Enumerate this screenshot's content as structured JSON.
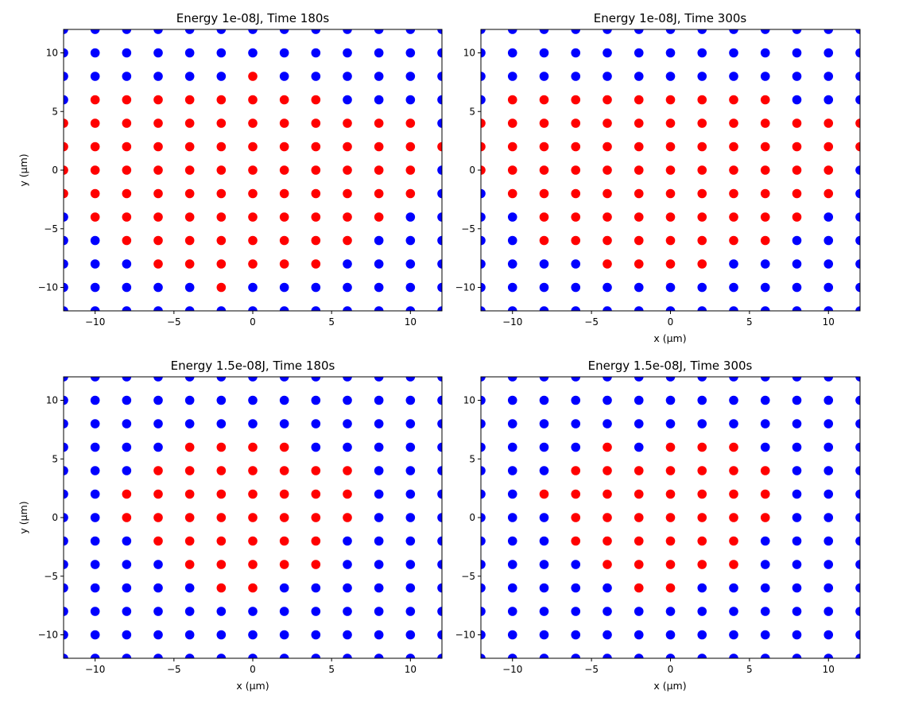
{
  "chart_data": [
    {
      "type": "scatter",
      "title": "Energy 1e-08J, Time 180s",
      "xlabel": "",
      "ylabel": "y (μm)",
      "xlim": [
        -12,
        12
      ],
      "ylim": [
        -12,
        12
      ],
      "xticks": [
        -10,
        -5,
        0,
        5,
        10
      ],
      "yticks": [
        -10,
        -5,
        0,
        5,
        10
      ],
      "grid_x": [
        -12,
        -10,
        -8,
        -6,
        -4,
        -2,
        0,
        2,
        4,
        6,
        8,
        10,
        12
      ],
      "grid_y": [
        -12,
        -10,
        -8,
        -6,
        -4,
        -2,
        0,
        2,
        4,
        6,
        8,
        10,
        12
      ],
      "default_color": "#0000ff",
      "highlight_color": "#ff0000",
      "red_ranges": [
        {
          "y": 8,
          "x": [
            0,
            0
          ]
        },
        {
          "y": 6,
          "x": [
            -10,
            4
          ]
        },
        {
          "y": 4,
          "x": [
            -12,
            10
          ]
        },
        {
          "y": 2,
          "x": [
            -12,
            12
          ]
        },
        {
          "y": 0,
          "x": [
            -12,
            10
          ]
        },
        {
          "y": -2,
          "x": [
            -12,
            10
          ]
        },
        {
          "y": -4,
          "x": [
            -10,
            8
          ]
        },
        {
          "y": -6,
          "x": [
            -8,
            6
          ]
        },
        {
          "y": -8,
          "x": [
            -6,
            4
          ]
        },
        {
          "y": -10,
          "x": [
            -2,
            -2
          ]
        }
      ]
    },
    {
      "type": "scatter",
      "title": "Energy 1e-08J, Time 300s",
      "xlabel": "x (μm)",
      "ylabel": "",
      "xlim": [
        -12,
        12
      ],
      "ylim": [
        -12,
        12
      ],
      "xticks": [
        -10,
        -5,
        0,
        5,
        10
      ],
      "yticks": [
        -10,
        -5,
        0,
        5,
        10
      ],
      "grid_x": [
        -12,
        -10,
        -8,
        -6,
        -4,
        -2,
        0,
        2,
        4,
        6,
        8,
        10,
        12
      ],
      "grid_y": [
        -12,
        -10,
        -8,
        -6,
        -4,
        -2,
        0,
        2,
        4,
        6,
        8,
        10,
        12
      ],
      "default_color": "#0000ff",
      "highlight_color": "#ff0000",
      "red_ranges": [
        {
          "y": 6,
          "x": [
            -10,
            6
          ]
        },
        {
          "y": 4,
          "x": [
            -12,
            12
          ]
        },
        {
          "y": 2,
          "x": [
            -12,
            12
          ]
        },
        {
          "y": 0,
          "x": [
            -12,
            10
          ]
        },
        {
          "y": -2,
          "x": [
            -10,
            10
          ]
        },
        {
          "y": -4,
          "x": [
            -8,
            8
          ]
        },
        {
          "y": -6,
          "x": [
            -8,
            6
          ]
        },
        {
          "y": -8,
          "x": [
            -4,
            2
          ]
        }
      ]
    },
    {
      "type": "scatter",
      "title": "Energy 1.5e-08J, Time 180s",
      "xlabel": "x (μm)",
      "ylabel": "y (μm)",
      "xlim": [
        -12,
        12
      ],
      "ylim": [
        -12,
        12
      ],
      "xticks": [
        -10,
        -5,
        0,
        5,
        10
      ],
      "yticks": [
        -10,
        -5,
        0,
        5,
        10
      ],
      "grid_x": [
        -12,
        -10,
        -8,
        -6,
        -4,
        -2,
        0,
        2,
        4,
        6,
        8,
        10,
        12
      ],
      "grid_y": [
        -12,
        -10,
        -8,
        -6,
        -4,
        -2,
        0,
        2,
        4,
        6,
        8,
        10,
        12
      ],
      "default_color": "#0000ff",
      "highlight_color": "#ff0000",
      "red_ranges": [
        {
          "y": 6,
          "x": [
            -4,
            2
          ]
        },
        {
          "y": 4,
          "x": [
            -6,
            6
          ]
        },
        {
          "y": 2,
          "x": [
            -8,
            6
          ]
        },
        {
          "y": 0,
          "x": [
            -8,
            6
          ]
        },
        {
          "y": -2,
          "x": [
            -6,
            4
          ]
        },
        {
          "y": -4,
          "x": [
            -4,
            4
          ]
        },
        {
          "y": -6,
          "x": [
            -2,
            0
          ]
        }
      ]
    },
    {
      "type": "scatter",
      "title": "Energy 1.5e-08J, Time 300s",
      "xlabel": "x (μm)",
      "ylabel": "",
      "xlim": [
        -12,
        12
      ],
      "ylim": [
        -12,
        12
      ],
      "xticks": [
        -10,
        -5,
        0,
        5,
        10
      ],
      "yticks": [
        -10,
        -5,
        0,
        5,
        10
      ],
      "grid_x": [
        -12,
        -10,
        -8,
        -6,
        -4,
        -2,
        0,
        2,
        4,
        6,
        8,
        10,
        12
      ],
      "grid_y": [
        -12,
        -10,
        -8,
        -6,
        -4,
        -2,
        0,
        2,
        4,
        6,
        8,
        10,
        12
      ],
      "default_color": "#0000ff",
      "highlight_color": "#ff0000",
      "red_ranges": [
        {
          "y": 6,
          "x": [
            -4,
            -4
          ]
        },
        {
          "y": 6,
          "x": [
            0,
            4
          ]
        },
        {
          "y": 4,
          "x": [
            -6,
            6
          ]
        },
        {
          "y": 2,
          "x": [
            -8,
            6
          ]
        },
        {
          "y": 0,
          "x": [
            -6,
            6
          ]
        },
        {
          "y": -2,
          "x": [
            -6,
            4
          ]
        },
        {
          "y": -4,
          "x": [
            -4,
            4
          ]
        },
        {
          "y": -6,
          "x": [
            -2,
            0
          ]
        }
      ]
    }
  ]
}
